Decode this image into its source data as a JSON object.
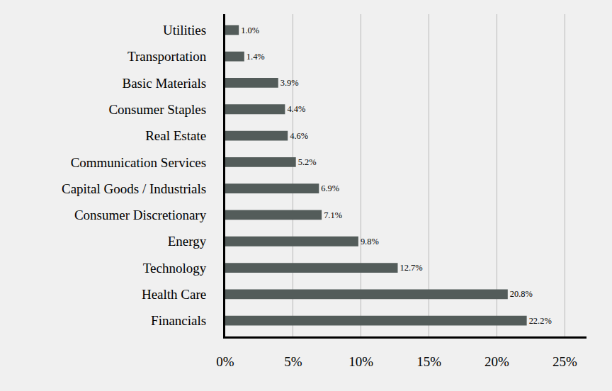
{
  "chart_data": {
    "type": "bar",
    "orientation": "horizontal",
    "categories": [
      "Financials",
      "Health Care",
      "Technology",
      "Energy",
      "Consumer Discretionary",
      "Capital Goods / Industrials",
      "Communication Services",
      "Real Estate",
      "Consumer Staples",
      "Basic Materials",
      "Transportation",
      "Utilities"
    ],
    "values": [
      22.2,
      20.8,
      12.7,
      9.8,
      7.1,
      6.9,
      5.2,
      4.6,
      4.4,
      3.9,
      1.4,
      1.0
    ],
    "value_labels": [
      "22.2%",
      "20.8%",
      "12.7%",
      "9.8%",
      "7.1%",
      "6.9%",
      "5.2%",
      "4.6%",
      "4.4%",
      "3.9%",
      "1.4%",
      "1.0%"
    ],
    "color": "#535c5a",
    "data_labels": true,
    "xlim": [
      0,
      26.6
    ],
    "xticks": [
      {
        "value": 0,
        "label": "0%"
      },
      {
        "value": 5,
        "label": "5%"
      },
      {
        "value": 10,
        "label": "10%"
      },
      {
        "value": 15,
        "label": "15%"
      },
      {
        "value": 20,
        "label": "20%"
      },
      {
        "value": 25,
        "label": "25%"
      }
    ],
    "grid": true
  }
}
